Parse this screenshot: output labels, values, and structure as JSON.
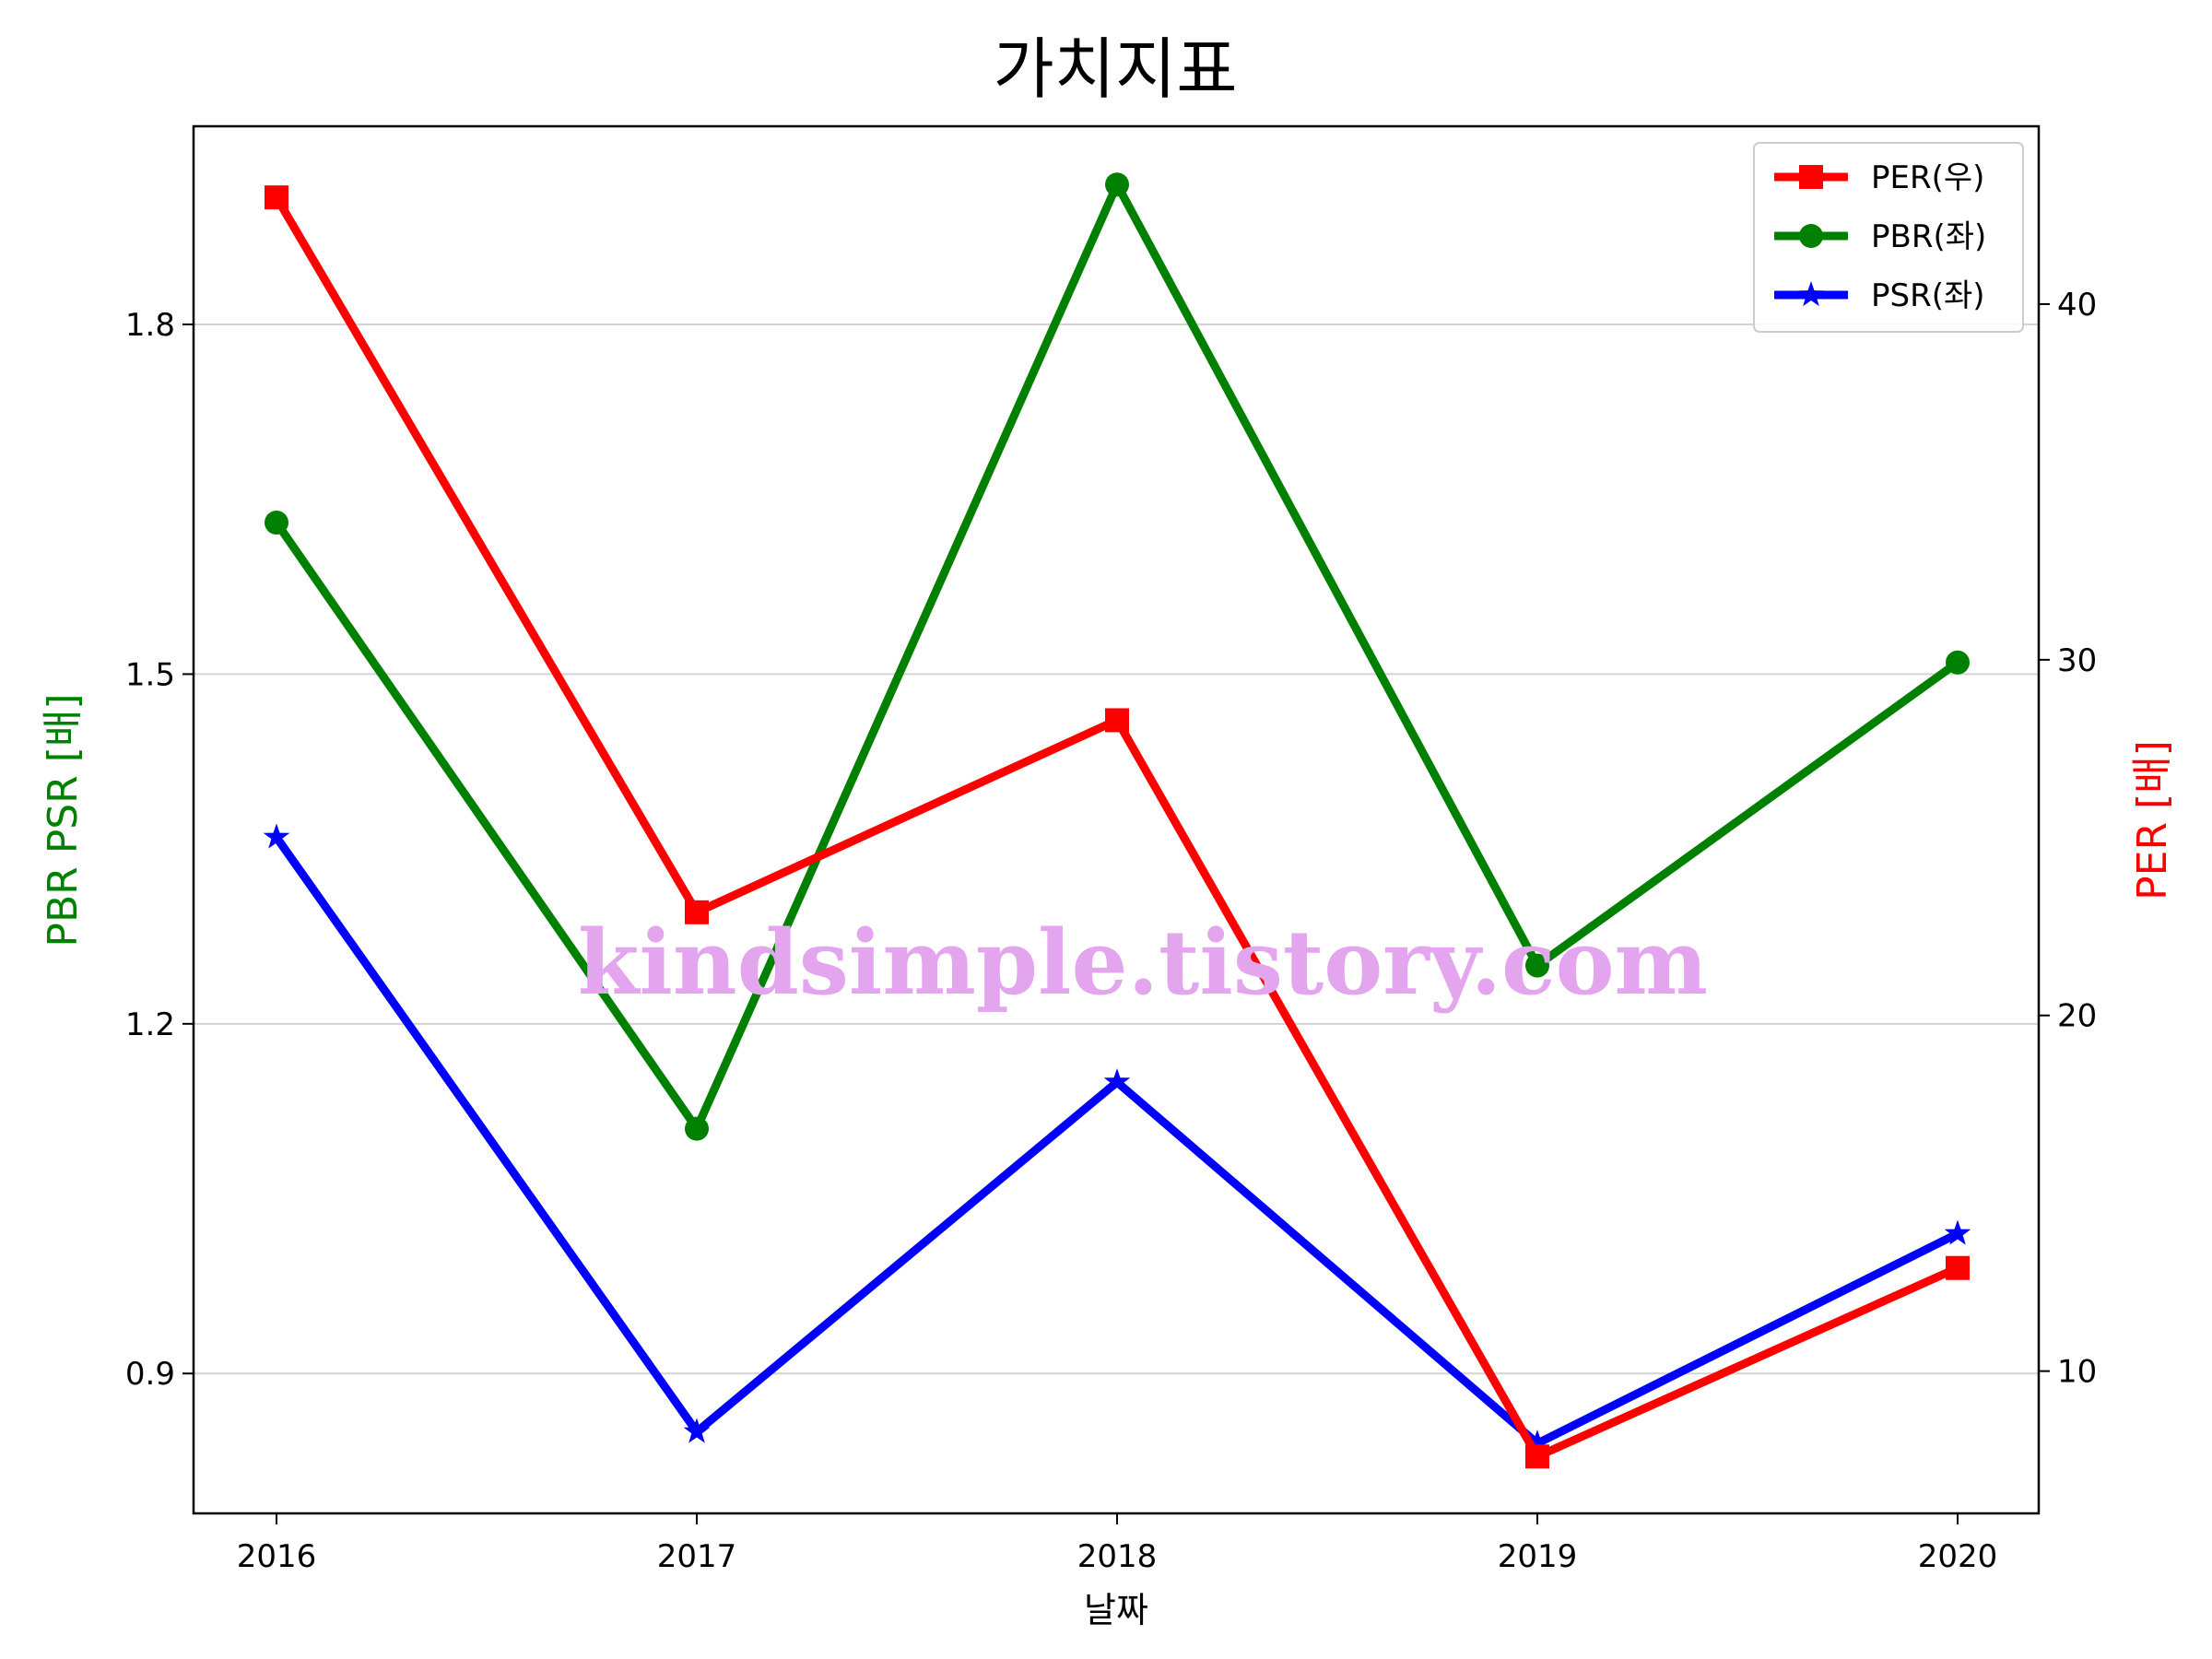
{
  "chart_data": {
    "type": "line",
    "title": "가치지표",
    "xlabel": "날짜",
    "ylabel_left": "PBR PSR [배]",
    "ylabel_right": "PER [배]",
    "categories": [
      "2016",
      "2017",
      "2018",
      "2019",
      "2020"
    ],
    "ylim_left": [
      0.78,
      1.97
    ],
    "ylim_right": [
      6.0,
      45.0
    ],
    "yticks_left": [
      "0.9",
      "1.2",
      "1.5",
      "1.8"
    ],
    "yticks_right": [
      "10",
      "20",
      "30",
      "40"
    ],
    "grid": "horizontal",
    "legend_position": "top-right",
    "series": [
      {
        "name": "PER(우)",
        "axis": "right",
        "color": "#ff0000",
        "marker": "square",
        "values": [
          43.0,
          22.9,
          28.3,
          7.6,
          12.9
        ]
      },
      {
        "name": "PBR(좌)",
        "axis": "left",
        "color": "#008000",
        "marker": "circle",
        "values": [
          1.63,
          1.11,
          1.92,
          1.25,
          1.51
        ]
      },
      {
        "name": "PSR(좌)",
        "axis": "left",
        "color": "#0000ff",
        "marker": "star",
        "values": [
          1.36,
          0.85,
          1.15,
          0.84,
          1.02
        ]
      }
    ]
  },
  "watermark": "kindsimple.tistory.com"
}
